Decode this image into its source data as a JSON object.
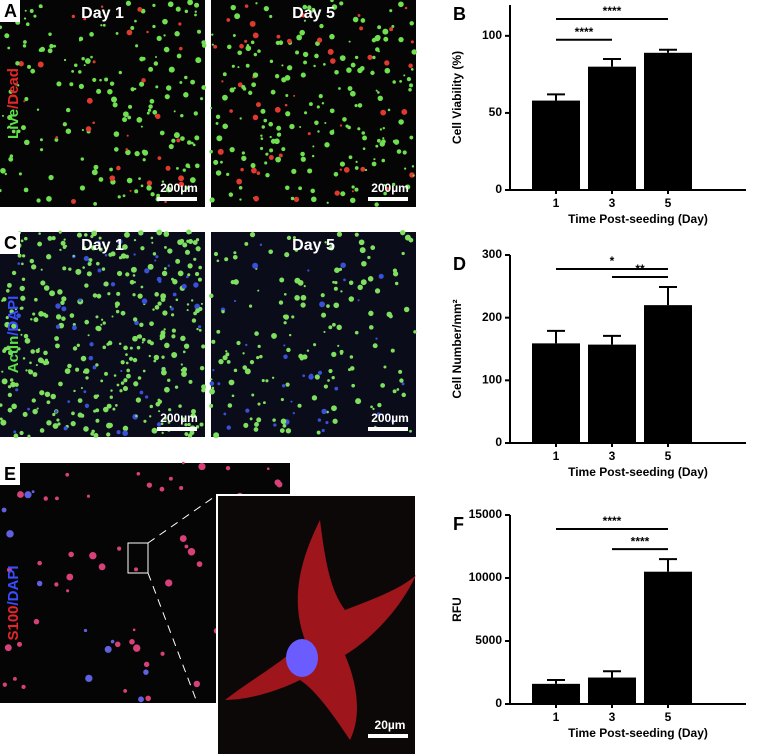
{
  "panels": [
    {
      "letter": "A",
      "stain": [
        {
          "text": "Live",
          "color": "#5ee04a"
        },
        {
          "text": "/Dead",
          "color": "#e8262a"
        }
      ],
      "dots": [
        "#6fe050",
        "#e03a30"
      ],
      "images": [
        {
          "caption": "Day 1",
          "scale": "200µm"
        },
        {
          "caption": "Day 5",
          "scale": "200µm"
        }
      ]
    },
    {
      "letter": "C",
      "stain": [
        {
          "text": "Actin",
          "color": "#5ee04a"
        },
        {
          "text": "/DAPI",
          "color": "#3a4cff"
        }
      ],
      "dots": [
        "#7fe060",
        "#3a50d8"
      ],
      "images": [
        {
          "caption": "Day 1",
          "scale": "200µm"
        },
        {
          "caption": "Day 5",
          "scale": "200µm"
        }
      ]
    },
    {
      "letter": "E",
      "stain": [
        {
          "text": "S100",
          "color": "#e8262a"
        },
        {
          "text": "/DAPI",
          "color": "#3a4cff"
        }
      ],
      "dots": [
        "#d8407a",
        "#6060e0"
      ],
      "images": [
        {
          "scale": "20µm"
        }
      ]
    }
  ],
  "chart_data": [
    {
      "type": "bar",
      "letter": "B",
      "ylabel": "Cell Viability (%)",
      "xlabel": "Time Post-seeding (Day)",
      "categories": [
        "1",
        "3",
        "5"
      ],
      "values": [
        58,
        80,
        89
      ],
      "errors": [
        4,
        5,
        2
      ],
      "color": "#000000",
      "ylim": [
        0,
        120
      ],
      "yticks": [
        0,
        50,
        100
      ],
      "comparisons": [
        {
          "groups": [
            "1",
            "3"
          ],
          "label": "****"
        },
        {
          "groups": [
            "1",
            "5"
          ],
          "label": "****"
        }
      ]
    },
    {
      "type": "bar",
      "letter": "D",
      "ylabel": "Cell Number/mm²",
      "xlabel": "Time Post-seeding (Day)",
      "categories": [
        "1",
        "3",
        "5"
      ],
      "values": [
        159,
        157,
        220
      ],
      "errors": [
        20,
        14,
        29
      ],
      "color": "#000000",
      "ylim": [
        0,
        300
      ],
      "yticks": [
        0,
        100,
        200,
        300
      ],
      "comparisons": [
        {
          "groups": [
            "3",
            "5"
          ],
          "label": "**"
        },
        {
          "groups": [
            "1",
            "5"
          ],
          "label": "*"
        }
      ]
    },
    {
      "type": "bar",
      "letter": "F",
      "ylabel": "RFU",
      "xlabel": "Time Post-seeding (Day)",
      "categories": [
        "1",
        "3",
        "5"
      ],
      "values": [
        1600,
        2100,
        10500
      ],
      "errors": [
        300,
        500,
        1000
      ],
      "color": "#000000",
      "ylim": [
        0,
        15000
      ],
      "yticks": [
        0,
        5000,
        10000,
        15000
      ],
      "comparisons": [
        {
          "groups": [
            "3",
            "5"
          ],
          "label": "****"
        },
        {
          "groups": [
            "1",
            "5"
          ],
          "label": "****"
        }
      ]
    }
  ]
}
